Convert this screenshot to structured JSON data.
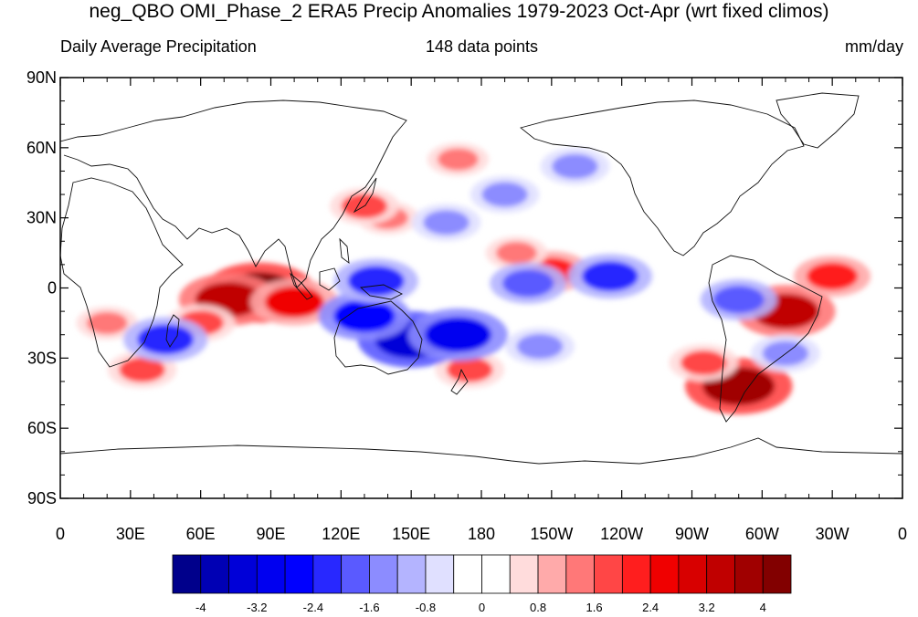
{
  "title": "neg_QBO OMI_Phase_2 ERA5 Precip Anomalies 1979-2023 Oct-Apr (wrt fixed climos)",
  "subtitle_left": "Daily Average Precipitation",
  "subtitle_center": "148 data points",
  "subtitle_right": "mm/day",
  "lat_labels": [
    "90N",
    "60N",
    "30N",
    "0",
    "30S",
    "60S",
    "90S"
  ],
  "lon_labels": [
    "0",
    "30E",
    "60E",
    "90E",
    "120E",
    "150E",
    "180",
    "150W",
    "120W",
    "90W",
    "60W",
    "30W",
    "0"
  ],
  "colorbar": {
    "colors": [
      "#00008b",
      "#0000b4",
      "#0000d8",
      "#0000f0",
      "#0000ff",
      "#2828ff",
      "#5a5aff",
      "#8c8cff",
      "#b4b4ff",
      "#e0e0ff",
      "#ffffff",
      "#ffffff",
      "#ffdcdc",
      "#ffaaaa",
      "#ff7878",
      "#ff4646",
      "#ff1e1e",
      "#f00000",
      "#d80000",
      "#c00000",
      "#a00000",
      "#820000"
    ],
    "tick_labels": [
      "-4",
      "-3.2",
      "-2.4",
      "-1.6",
      "-0.8",
      "0",
      "0.8",
      "1.6",
      "2.4",
      "3.2",
      "4"
    ]
  },
  "chart_data": {
    "type": "heatmap",
    "title": "neg_QBO OMI_Phase_2 ERA5 Precip Anomalies 1979-2023 Oct-Apr (wrt fixed climos)",
    "variable": "Daily Average Precipitation",
    "units": "mm/day",
    "n": 148,
    "projection": "cylindrical equidistant, centered 180",
    "lon_range": [
      0,
      360
    ],
    "lat_range": [
      -90,
      90
    ],
    "color_levels": [
      -4,
      -3.6,
      -3.2,
      -2.8,
      -2.4,
      -2,
      -1.6,
      -1.2,
      -0.8,
      -0.4,
      0,
      0.4,
      0.8,
      1.2,
      1.6,
      2,
      2.4,
      2.8,
      3.2,
      3.6,
      4
    ],
    "anomaly_features": [
      {
        "lon": 85,
        "lat": -2,
        "value": 4.0
      },
      {
        "lon": 72,
        "lat": -5,
        "value": 3.2
      },
      {
        "lon": 100,
        "lat": -6,
        "value": 2.6
      },
      {
        "lon": 60,
        "lat": -15,
        "value": 1.6
      },
      {
        "lon": 20,
        "lat": -15,
        "value": 1.2
      },
      {
        "lon": 35,
        "lat": -35,
        "value": 1.6
      },
      {
        "lon": 140,
        "lat": 30,
        "value": 1.2
      },
      {
        "lon": 130,
        "lat": 35,
        "value": 1.6
      },
      {
        "lon": 170,
        "lat": 55,
        "value": 1.2
      },
      {
        "lon": 310,
        "lat": -10,
        "value": 3.2
      },
      {
        "lon": 290,
        "lat": -42,
        "value": 3.6
      },
      {
        "lon": 330,
        "lat": 5,
        "value": 2.0
      },
      {
        "lon": 275,
        "lat": -32,
        "value": 1.6
      },
      {
        "lon": 210,
        "lat": 7,
        "value": 2.0
      },
      {
        "lon": 195,
        "lat": 15,
        "value": 1.2
      },
      {
        "lon": 175,
        "lat": -35,
        "value": 1.6
      },
      {
        "lon": 150,
        "lat": -22,
        "value": -3.6
      },
      {
        "lon": 170,
        "lat": -20,
        "value": -3.2
      },
      {
        "lon": 130,
        "lat": -12,
        "value": -2.8
      },
      {
        "lon": 135,
        "lat": 3,
        "value": -2.4
      },
      {
        "lon": 200,
        "lat": 2,
        "value": -2.0
      },
      {
        "lon": 235,
        "lat": 5,
        "value": -2.4
      },
      {
        "lon": 165,
        "lat": 28,
        "value": -1.6
      },
      {
        "lon": 190,
        "lat": 40,
        "value": -1.6
      },
      {
        "lon": 45,
        "lat": -22,
        "value": -2.4
      },
      {
        "lon": 290,
        "lat": -5,
        "value": -2.0
      },
      {
        "lon": 310,
        "lat": -28,
        "value": -1.6
      },
      {
        "lon": 220,
        "lat": 52,
        "value": -1.6
      },
      {
        "lon": 205,
        "lat": -25,
        "value": -1.6
      }
    ]
  }
}
